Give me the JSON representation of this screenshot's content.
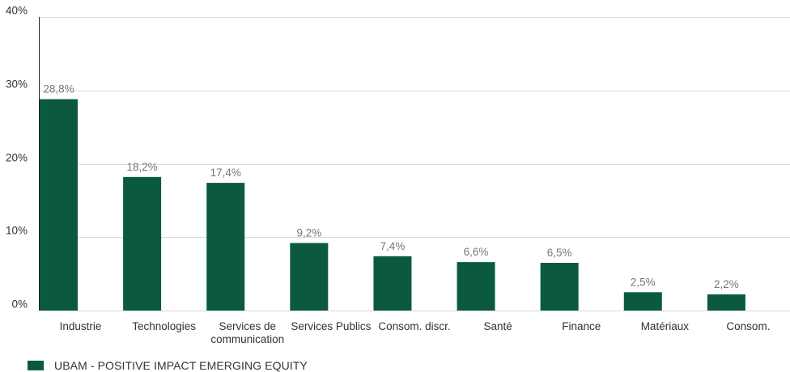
{
  "chart_data": {
    "type": "bar",
    "categories": [
      [
        "Industrie"
      ],
      [
        "Technologies"
      ],
      [
        "Services de",
        "communication"
      ],
      [
        "Services Publics"
      ],
      [
        "Consom. discr."
      ],
      [
        "Santé"
      ],
      [
        "Finance"
      ],
      [
        "Matériaux"
      ],
      [
        "Consom."
      ]
    ],
    "series": [
      {
        "name": "UBAM - POSITIVE IMPACT EMERGING EQUITY",
        "values": [
          28.8,
          18.2,
          17.4,
          9.2,
          7.4,
          6.6,
          6.5,
          2.5,
          2.2
        ],
        "data_labels": [
          "28,8%",
          "18,2%",
          "17,4%",
          "9,2%",
          "7,4%",
          "6,6%",
          "6,5%",
          "2,5%",
          "2,2%"
        ]
      }
    ],
    "ylim": [
      0,
      40
    ],
    "y_ticks": [
      0,
      10,
      20,
      30,
      40
    ],
    "y_tick_labels": [
      "0%",
      "10%",
      "20%",
      "30%",
      "40%"
    ],
    "grid": true,
    "legend_position": "bottom-left",
    "colors": {
      "bar": "#0b5a3e",
      "grid": "#d9d9d9",
      "axis": "#222222",
      "text": "#333333",
      "data_label": "#777777"
    }
  }
}
